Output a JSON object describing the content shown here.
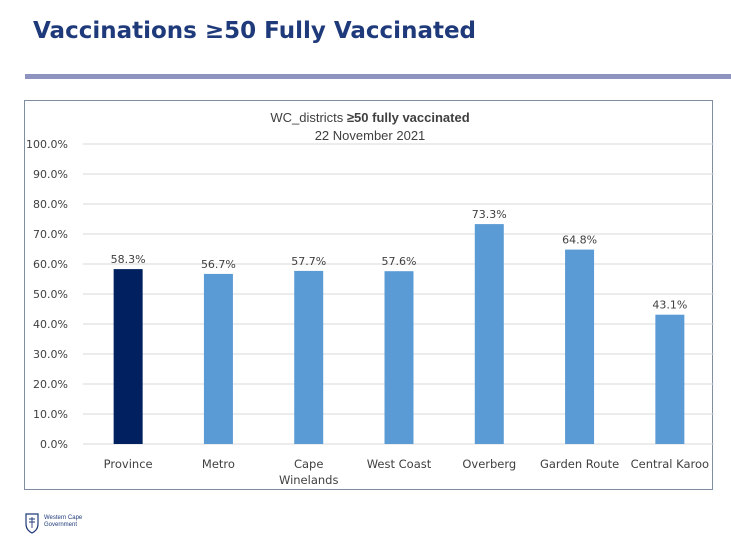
{
  "slide": {
    "title": "Vaccinations ≥50 Fully Vaccinated"
  },
  "footer": {
    "logo_text": "Western Cape\nGovernment"
  },
  "colors": {
    "title": "#1f3a7a",
    "rule": "#8e93c0",
    "bar_default": "#5b9bd5",
    "bar_highlight": "#002060",
    "grid": "#d9d9d9"
  },
  "chart_data": {
    "type": "bar",
    "title_prefix": "WC_districts ",
    "title_bold": "≥50 fully vaccinated",
    "subtitle": "22 November 2021",
    "categories": [
      "Province",
      "Metro",
      "Cape Winelands",
      "West Coast",
      "Overberg",
      "Garden Route",
      "Central Karoo"
    ],
    "values": [
      58.3,
      56.7,
      57.7,
      57.6,
      73.3,
      64.8,
      43.1
    ],
    "data_labels": [
      "58.3%",
      "56.7%",
      "57.7%",
      "57.6%",
      "73.3%",
      "64.8%",
      "43.1%"
    ],
    "highlight_index": 0,
    "y_ticks": [
      "0.0%",
      "10.0%",
      "20.0%",
      "30.0%",
      "40.0%",
      "50.0%",
      "60.0%",
      "70.0%",
      "80.0%",
      "90.0%",
      "100.0%"
    ],
    "ylim": [
      0,
      100
    ],
    "grid": true,
    "legend": "none"
  }
}
